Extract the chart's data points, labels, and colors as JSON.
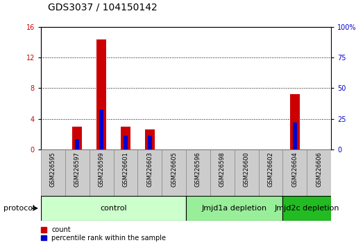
{
  "title": "GDS3037 / 104150142",
  "samples": [
    "GSM226595",
    "GSM226597",
    "GSM226599",
    "GSM226601",
    "GSM226603",
    "GSM226605",
    "GSM226596",
    "GSM226598",
    "GSM226600",
    "GSM226602",
    "GSM226604",
    "GSM226606"
  ],
  "count_values": [
    0,
    3.0,
    14.4,
    3.0,
    2.6,
    0,
    0,
    0,
    0,
    0,
    7.2,
    0
  ],
  "percentile_values": [
    0,
    8.5,
    33.0,
    11.0,
    11.0,
    0,
    0,
    0,
    0,
    0,
    22.0,
    0
  ],
  "ylim_left": [
    0,
    16
  ],
  "ylim_right": [
    0,
    100
  ],
  "yticks_left": [
    0,
    4,
    8,
    12,
    16
  ],
  "yticks_right": [
    0,
    25,
    50,
    75,
    100
  ],
  "yticklabels_right": [
    "0",
    "25",
    "50",
    "75",
    "100%"
  ],
  "bar_color_count": "#cc0000",
  "bar_color_pct": "#0000cc",
  "bar_width": 0.4,
  "groups": [
    {
      "label": "control",
      "start": 0,
      "end": 5,
      "color": "#ccffcc"
    },
    {
      "label": "Jmjd1a depletion",
      "start": 6,
      "end": 9,
      "color": "#99ee99"
    },
    {
      "label": "Jmjd2c depletion",
      "start": 10,
      "end": 11,
      "color": "#22bb22"
    }
  ],
  "protocol_label": "protocol",
  "legend_count_label": "count",
  "legend_pct_label": "percentile rank within the sample",
  "grid_color": "black",
  "bg_color": "#ffffff",
  "tick_label_color_left": "#cc0000",
  "tick_label_color_right": "#0000cc",
  "title_fontsize": 10,
  "tick_fontsize": 7,
  "sample_fontsize": 6,
  "group_label_fontsize": 8,
  "legend_fontsize": 7
}
